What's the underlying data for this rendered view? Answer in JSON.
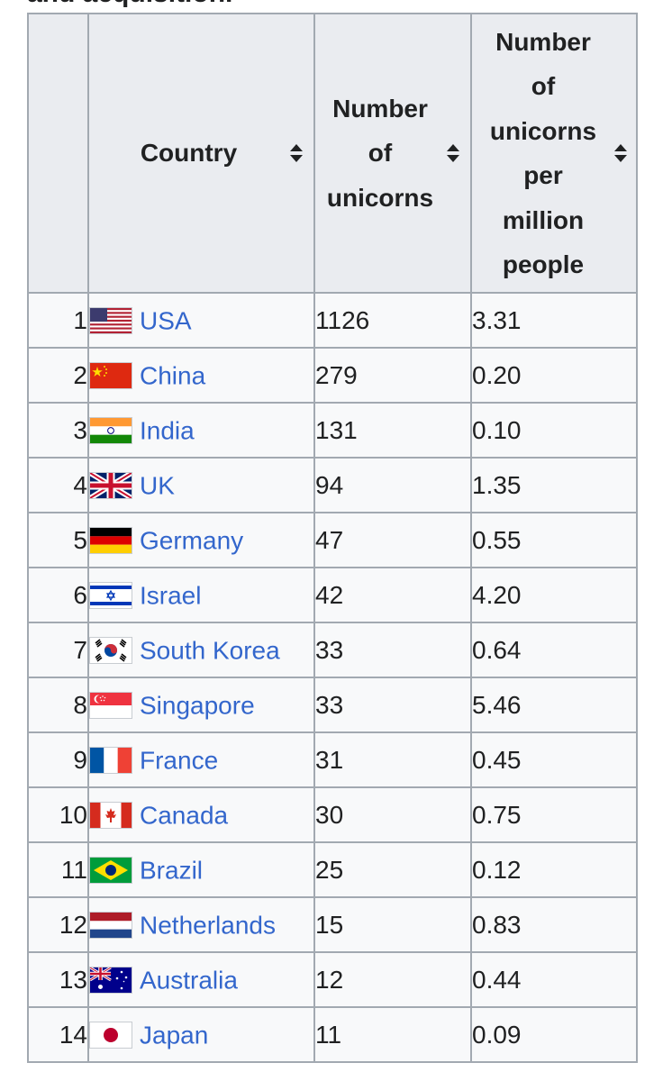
{
  "caption_clipped": "and acquisition.",
  "table": {
    "headers": {
      "rank": "",
      "country": "Country",
      "unicorns": [
        "Number",
        "of",
        "unicorns"
      ],
      "per_million": [
        "Number",
        "of",
        "unicorns",
        "per",
        "million",
        "people"
      ]
    },
    "rows": [
      {
        "rank": "1",
        "country": "USA",
        "flag": "us-flag-icon",
        "unicorns": "1126",
        "per_million": "3.31"
      },
      {
        "rank": "2",
        "country": "China",
        "flag": "china-flag-icon",
        "unicorns": "279",
        "per_million": "0.20"
      },
      {
        "rank": "3",
        "country": "India",
        "flag": "india-flag-icon",
        "unicorns": "131",
        "per_million": "0.10"
      },
      {
        "rank": "4",
        "country": "UK",
        "flag": "uk-flag-icon",
        "unicorns": "94",
        "per_million": "1.35"
      },
      {
        "rank": "5",
        "country": "Germany",
        "flag": "germany-flag-icon",
        "unicorns": "47",
        "per_million": "0.55"
      },
      {
        "rank": "6",
        "country": "Israel",
        "flag": "israel-flag-icon",
        "unicorns": "42",
        "per_million": "4.20"
      },
      {
        "rank": "7",
        "country": "South Korea",
        "flag": "south-korea-flag-icon",
        "unicorns": "33",
        "per_million": "0.64"
      },
      {
        "rank": "8",
        "country": "Singapore",
        "flag": "singapore-flag-icon",
        "unicorns": "33",
        "per_million": "5.46"
      },
      {
        "rank": "9",
        "country": "France",
        "flag": "france-flag-icon",
        "unicorns": "31",
        "per_million": "0.45"
      },
      {
        "rank": "10",
        "country": "Canada",
        "flag": "canada-flag-icon",
        "unicorns": "30",
        "per_million": "0.75"
      },
      {
        "rank": "11",
        "country": "Brazil",
        "flag": "brazil-flag-icon",
        "unicorns": "25",
        "per_million": "0.12"
      },
      {
        "rank": "12",
        "country": "Netherlands",
        "flag": "netherlands-flag-icon",
        "unicorns": "15",
        "per_million": "0.83"
      },
      {
        "rank": "13",
        "country": "Australia",
        "flag": "australia-flag-icon",
        "unicorns": "12",
        "per_million": "0.44"
      },
      {
        "rank": "14",
        "country": "Japan",
        "flag": "japan-flag-icon",
        "unicorns": "11",
        "per_million": "0.09"
      }
    ]
  },
  "colors": {
    "link": "#3366cc",
    "header_bg": "#eaecf0",
    "cell_bg": "#f8f9fa",
    "border": "#a2a9b1"
  }
}
